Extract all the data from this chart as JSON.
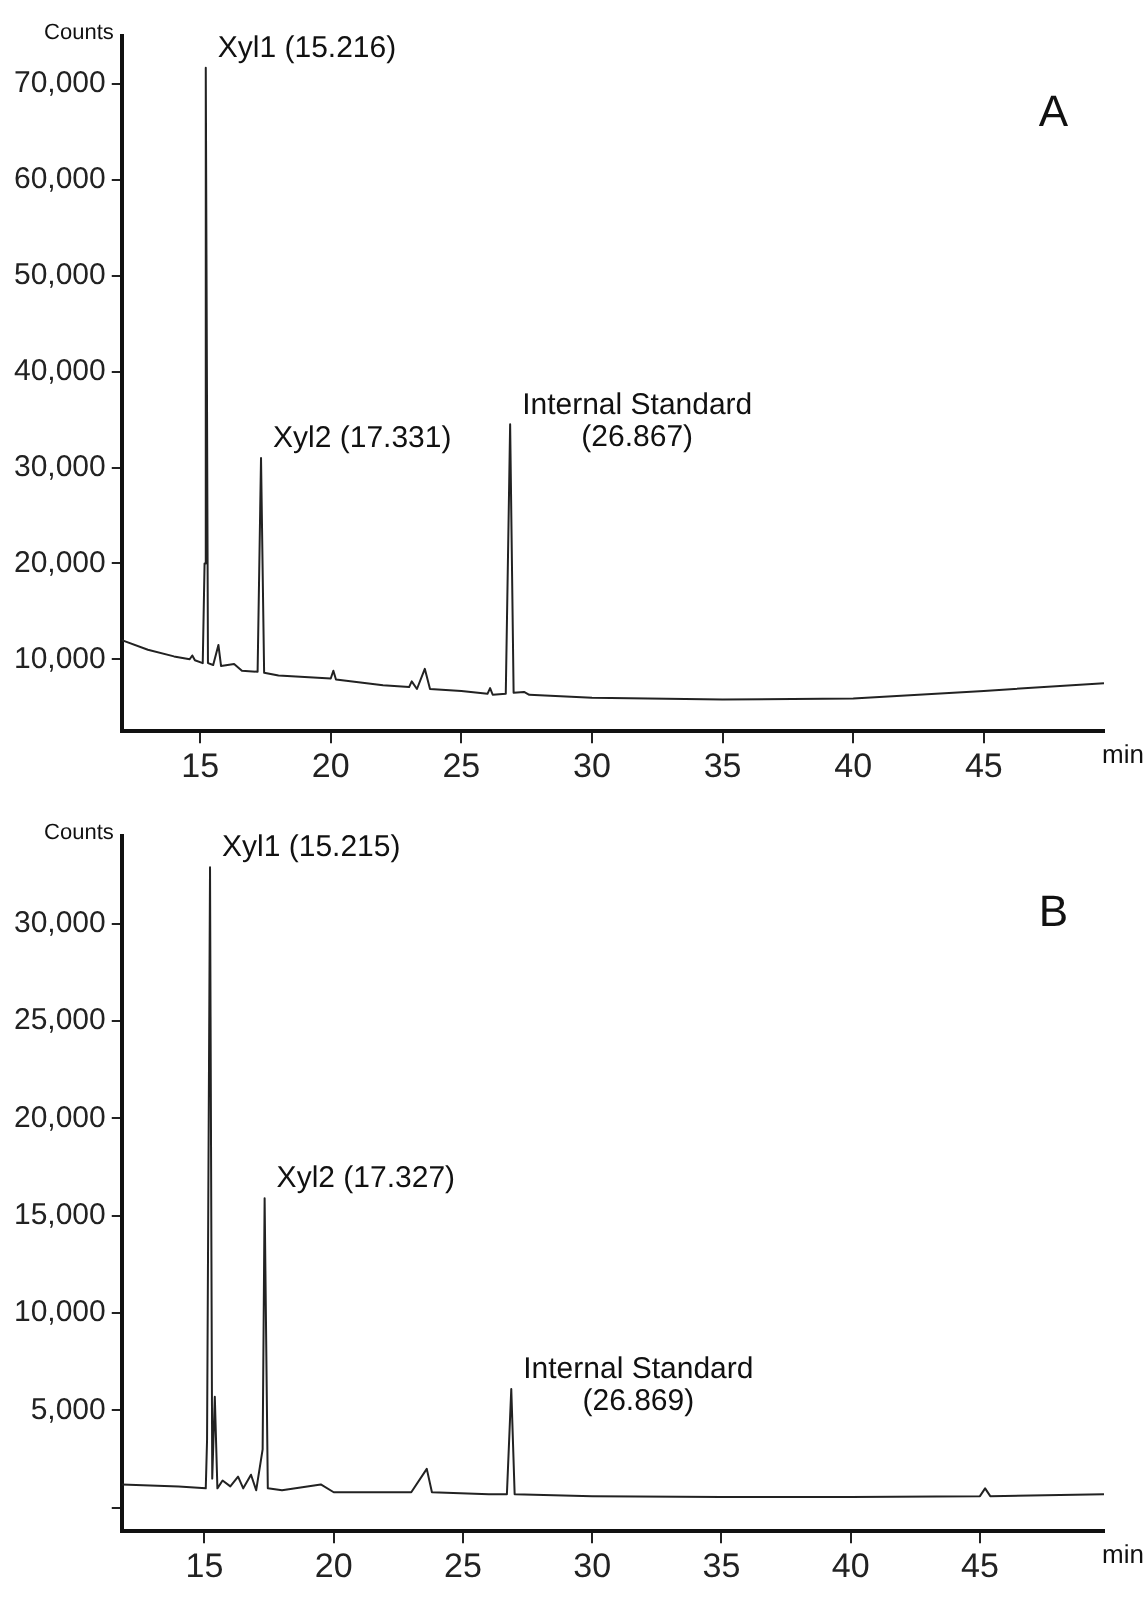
{
  "chart_data": [
    {
      "type": "line",
      "ylabel": "Counts",
      "xlabel": "min",
      "xlim": [
        12,
        49.6
      ],
      "xticks": [
        15,
        20,
        25,
        30,
        35,
        40,
        45
      ],
      "ylim": [
        2500,
        75000
      ],
      "yticks": [
        {
          "value": 10000,
          "label": "10,000"
        },
        {
          "value": 20000,
          "label": "20,000"
        },
        {
          "value": 30000,
          "label": "30,000"
        },
        {
          "value": 40000,
          "label": "40,000"
        },
        {
          "value": 50000,
          "label": "50,000"
        },
        {
          "value": 60000,
          "label": "60,000"
        },
        {
          "value": 70000,
          "label": "70,000"
        }
      ],
      "grid": false,
      "legend": false,
      "marker": "none",
      "line_style": "solid",
      "annotations": [
        "A",
        {
          "text": "Xyl1 (15.216)",
          "x": 15.216,
          "y": 71700
        },
        {
          "text": "Xyl2 (17.331)",
          "x": 17.331,
          "y": 31000
        },
        {
          "text": "Internal Standard\n(26.867)",
          "x": 26.867,
          "y": 34500
        }
      ],
      "series": [
        {
          "color": "#222222",
          "x": [
            12,
            13,
            14,
            14.6,
            14.7,
            14.8,
            15.1,
            15.17,
            15.216,
            15.3,
            15.5,
            15.7,
            15.8,
            16.3,
            16.6,
            17.2,
            17.331,
            17.45,
            18,
            20,
            20.1,
            20.2,
            22,
            23,
            23.1,
            23.3,
            23.6,
            23.8,
            25,
            26,
            26.1,
            26.2,
            26.7,
            26.867,
            27,
            27.4,
            27.6,
            30,
            35,
            40,
            45,
            49.6
          ],
          "values": [
            12000,
            11000,
            10300,
            10000,
            10400,
            9900,
            9600,
            20000,
            71700,
            9600,
            9400,
            11500,
            9300,
            9500,
            8800,
            8700,
            31000,
            8600,
            8300,
            8000,
            8800,
            7900,
            7300,
            7100,
            7700,
            6900,
            9000,
            6900,
            6700,
            6400,
            7000,
            6300,
            6400,
            34500,
            6500,
            6600,
            6300,
            6000,
            5800,
            5900,
            6700,
            7500
          ]
        }
      ]
    },
    {
      "type": "line",
      "ylabel": "Counts",
      "xlabel": "min",
      "xlim": [
        11.8,
        49.8
      ],
      "xticks": [
        15,
        20,
        25,
        30,
        35,
        40,
        45
      ],
      "ylim": [
        -1200,
        34500
      ],
      "yticks": [
        {
          "value": 0,
          "label": null
        },
        {
          "value": 5000,
          "label": "5,000"
        },
        {
          "value": 10000,
          "label": "10,000"
        },
        {
          "value": 15000,
          "label": "15,000"
        },
        {
          "value": 20000,
          "label": "20,000"
        },
        {
          "value": 25000,
          "label": "25,000"
        },
        {
          "value": 30000,
          "label": "30,000"
        }
      ],
      "grid": false,
      "legend": false,
      "marker": "none",
      "line_style": "solid",
      "annotations": [
        "B",
        {
          "text": "Xyl1 (15.215)",
          "x": 15.215,
          "y": 32900
        },
        {
          "text": "Xyl2 (17.327)",
          "x": 17.327,
          "y": 15900
        },
        {
          "text": "Internal Standard\n(26.869)",
          "x": 26.869,
          "y": 6100
        }
      ],
      "series": [
        {
          "color": "#222222",
          "x": [
            11.8,
            14,
            15.05,
            15.1,
            15.215,
            15.3,
            15.4,
            15.5,
            15.7,
            16,
            16.3,
            16.5,
            16.8,
            17,
            17.25,
            17.327,
            17.45,
            18,
            19.5,
            20,
            23,
            23.6,
            23.8,
            26,
            26.7,
            26.869,
            27,
            30,
            35,
            40,
            45,
            45.2,
            45.4,
            49.8
          ],
          "values": [
            1200,
            1100,
            1000,
            3500,
            32900,
            1500,
            5700,
            1000,
            1400,
            1100,
            1600,
            1000,
            1700,
            900,
            3000,
            15900,
            1000,
            900,
            1200,
            800,
            800,
            2000,
            800,
            700,
            700,
            6100,
            700,
            600,
            550,
            550,
            600,
            1000,
            600,
            700
          ]
        }
      ]
    }
  ]
}
